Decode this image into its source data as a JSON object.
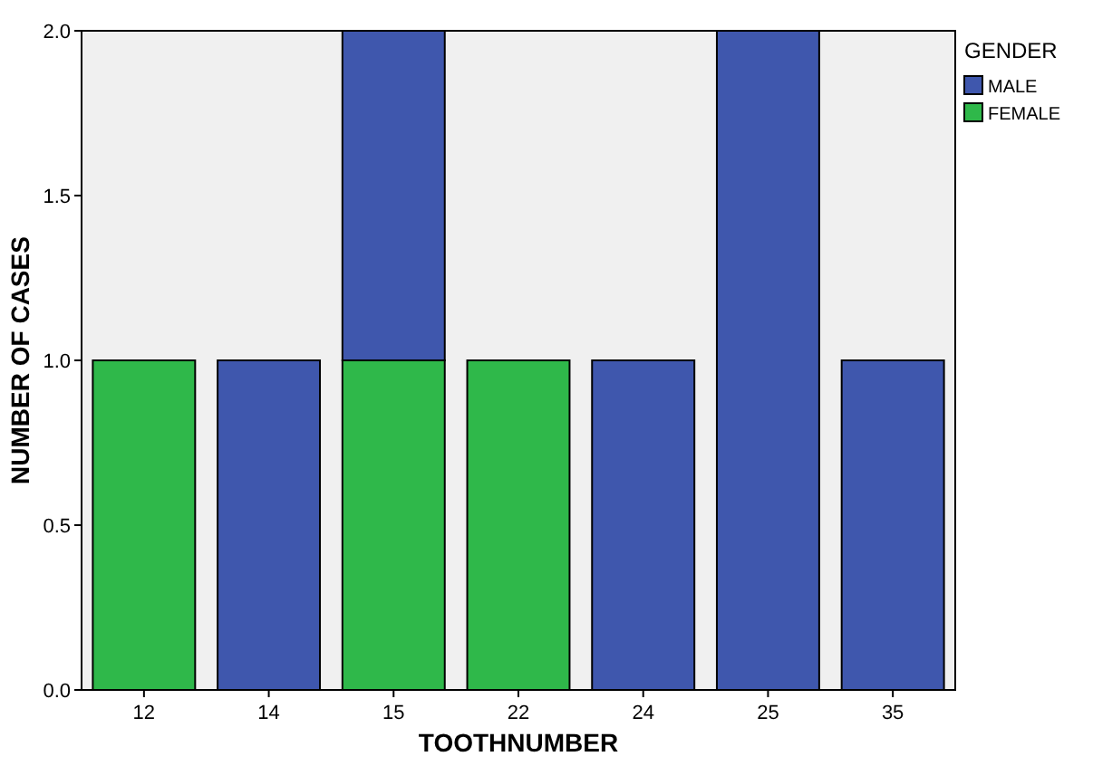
{
  "chart_data": {
    "type": "bar",
    "stacked": true,
    "xlabel": "TOOTHNUMBER",
    "ylabel": "NUMBER OF CASES",
    "legend_title": "GENDER",
    "legend": "top right",
    "grid": false,
    "categories": [
      "12",
      "14",
      "15",
      "22",
      "24",
      "25",
      "35"
    ],
    "ylim": [
      0,
      2
    ],
    "yticks": [
      {
        "value": 0,
        "label": "0.0"
      },
      {
        "value": 0.5,
        "label": "0.5"
      },
      {
        "value": 1,
        "label": "1.0"
      },
      {
        "value": 1.5,
        "label": "1.5"
      },
      {
        "value": 2,
        "label": "2.0"
      }
    ],
    "series": [
      {
        "name": "FEMALE",
        "color": "#2fb84a",
        "values": [
          1,
          0,
          1,
          1,
          0,
          0,
          0
        ]
      },
      {
        "name": "MALE",
        "color": "#3f57ad",
        "values": [
          0,
          1,
          1,
          0,
          1,
          2,
          1
        ]
      }
    ]
  }
}
